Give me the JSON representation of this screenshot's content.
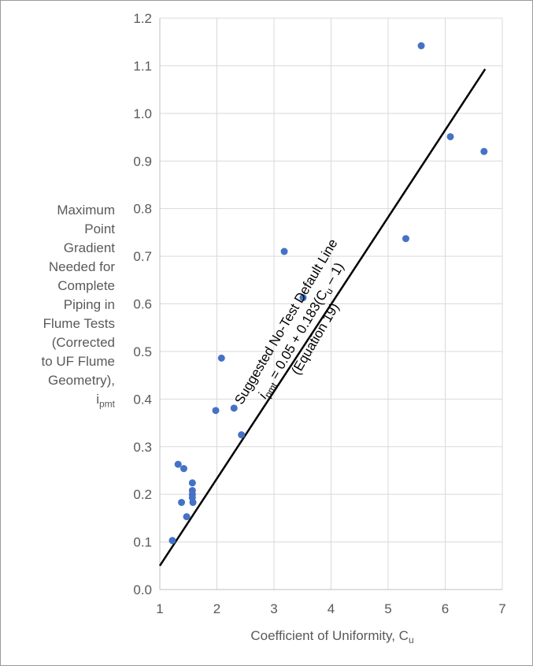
{
  "chart_data": {
    "type": "scatter",
    "xlabel": "Coefficient of Uniformity, C",
    "xlabel_sub": "u",
    "ylabel_lines": [
      "Maximum",
      "Point",
      "Gradient",
      "Needed for",
      "Complete",
      "Piping in",
      "Flume Tests",
      "(Corrected",
      "to UF Flume",
      "Geometry),"
    ],
    "ylabel_symbol": "i",
    "ylabel_symbol_sub": "pmt",
    "xlim": [
      1,
      7
    ],
    "ylim": [
      0.0,
      1.2
    ],
    "x_ticks": [
      "1",
      "2",
      "3",
      "4",
      "5",
      "6",
      "7"
    ],
    "y_ticks": [
      "0.0",
      "0.1",
      "0.2",
      "0.3",
      "0.4",
      "0.5",
      "0.6",
      "0.7",
      "0.8",
      "0.9",
      "1.0",
      "1.1",
      "1.2"
    ],
    "grid": true,
    "legend": "none",
    "marker_color": "#4472c4",
    "points": [
      {
        "x": 1.22,
        "y": 0.103
      },
      {
        "x": 1.32,
        "y": 0.263
      },
      {
        "x": 1.38,
        "y": 0.183
      },
      {
        "x": 1.42,
        "y": 0.254
      },
      {
        "x": 1.47,
        "y": 0.153
      },
      {
        "x": 1.57,
        "y": 0.224
      },
      {
        "x": 1.57,
        "y": 0.208
      },
      {
        "x": 1.57,
        "y": 0.2
      },
      {
        "x": 1.57,
        "y": 0.193
      },
      {
        "x": 1.58,
        "y": 0.183
      },
      {
        "x": 1.98,
        "y": 0.376
      },
      {
        "x": 2.08,
        "y": 0.486
      },
      {
        "x": 2.3,
        "y": 0.381
      },
      {
        "x": 2.43,
        "y": 0.325
      },
      {
        "x": 3.18,
        "y": 0.71
      },
      {
        "x": 3.51,
        "y": 0.613
      },
      {
        "x": 5.31,
        "y": 0.737
      },
      {
        "x": 5.58,
        "y": 1.142
      },
      {
        "x": 6.09,
        "y": 0.951
      },
      {
        "x": 6.68,
        "y": 0.92
      }
    ],
    "default_line": {
      "x": [
        1,
        6.7
      ],
      "y": [
        0.05,
        1.093
      ],
      "color": "#000000",
      "label_line1": "Suggested No-Test Default Line",
      "label_line2_i": "i",
      "label_line2_sub": "pmt",
      "label_line2_rest": " = 0.05 + 0.183(C",
      "label_line2_sub2": "u",
      "label_line2_end": " – 1)",
      "label_line3": "(Equation 19)"
    }
  }
}
